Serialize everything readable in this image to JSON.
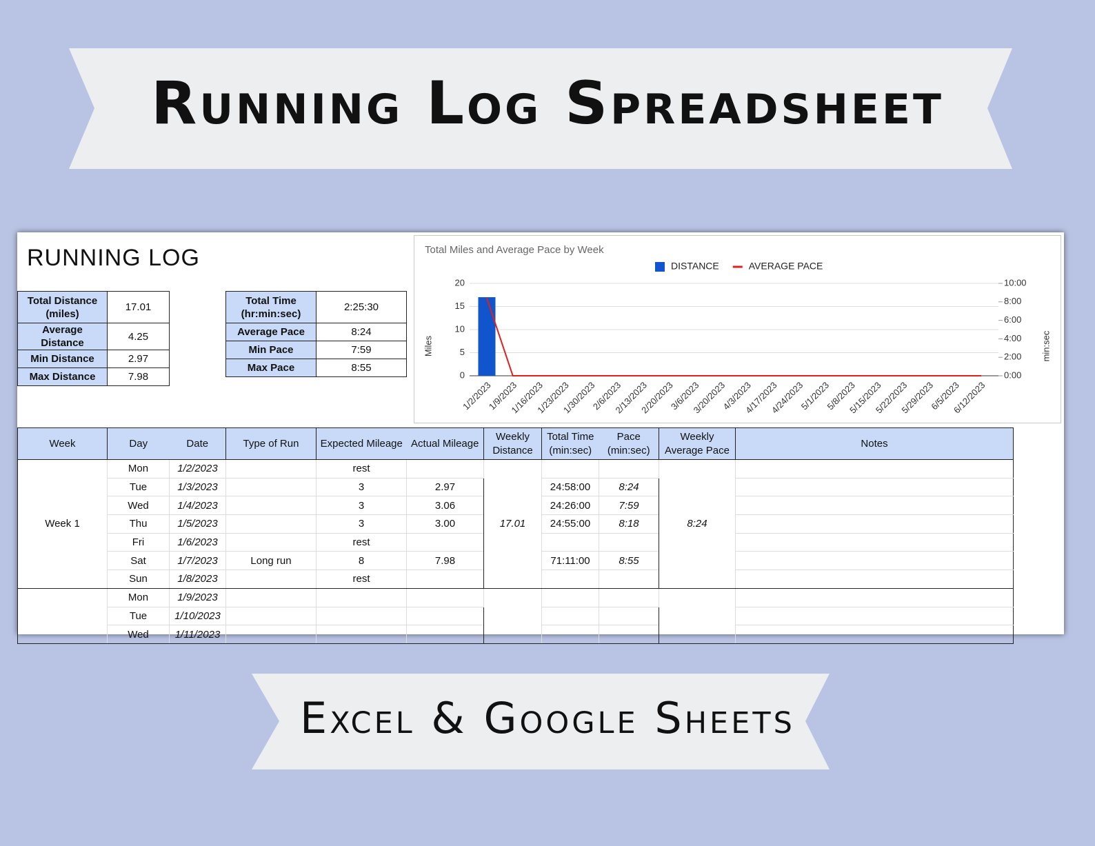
{
  "banner_title": "Running Log Spreadsheet",
  "banner_subtitle": "Excel & Google Sheets",
  "sheet_title": "RUNNING LOG",
  "distance_stats": [
    [
      "Total Distance (miles)",
      "17.01"
    ],
    [
      "Average Distance",
      "4.25"
    ],
    [
      "Min Distance",
      "2.97"
    ],
    [
      "Max Distance",
      "7.98"
    ]
  ],
  "time_stats": [
    [
      "Total Time (hr:min:sec)",
      "2:25:30"
    ],
    [
      "Average Pace",
      "8:24"
    ],
    [
      "Min Pace",
      "7:59"
    ],
    [
      "Max Pace",
      "8:55"
    ]
  ],
  "log": {
    "columns": [
      "Week",
      "Day",
      "Date",
      "Type of Run",
      "Expected Mileage",
      "Actual Mileage",
      "Weekly Distance",
      "Total Time (min:sec)",
      "Pace (min:sec)",
      "Weekly Average Pace",
      "Notes"
    ],
    "weeks": [
      {
        "week": "Week 1",
        "weekly_distance": "17.01",
        "weekly_average_pace": "8:24",
        "days": [
          {
            "day": "Mon",
            "date": "1/2/2023",
            "expected": "rest"
          },
          {
            "day": "Tue",
            "date": "1/3/2023",
            "expected": "3",
            "actual": "2.97",
            "total_time": "24:58:00",
            "pace": "8:24"
          },
          {
            "day": "Wed",
            "date": "1/4/2023",
            "expected": "3",
            "actual": "3.06",
            "total_time": "24:26:00",
            "pace": "7:59"
          },
          {
            "day": "Thu",
            "date": "1/5/2023",
            "expected": "3",
            "actual": "3.00",
            "total_time": "24:55:00",
            "pace": "8:18"
          },
          {
            "day": "Fri",
            "date": "1/6/2023",
            "expected": "rest"
          },
          {
            "day": "Sat",
            "date": "1/7/2023",
            "type": "Long run",
            "expected": "8",
            "actual": "7.98",
            "total_time": "71:11:00",
            "pace": "8:55"
          },
          {
            "day": "Sun",
            "date": "1/8/2023",
            "expected": "rest"
          }
        ]
      },
      {
        "days": [
          {
            "day": "Mon",
            "date": "1/9/2023"
          },
          {
            "day": "Tue",
            "date": "1/10/2023"
          },
          {
            "day": "Wed",
            "date": "1/11/2023"
          }
        ]
      }
    ]
  },
  "chart_data": {
    "type": "bar",
    "title": "Total Miles and Average Pace by Week",
    "ylabel": "Miles",
    "y2label": "min:sec",
    "categories": [
      "1/2/2023",
      "1/9/2023",
      "1/16/2023",
      "1/23/2023",
      "1/30/2023",
      "2/6/2023",
      "2/13/2023",
      "2/20/2023",
      "3/6/2023",
      "3/20/2023",
      "4/3/2023",
      "4/17/2023",
      "4/24/2023",
      "5/1/2023",
      "5/8/2023",
      "5/15/2023",
      "5/22/2023",
      "5/29/2023",
      "6/5/2023",
      "6/12/2023"
    ],
    "series": [
      {
        "name": "DISTANCE",
        "type": "bar",
        "color": "#1155cc",
        "values": [
          17.01,
          0,
          0,
          0,
          0,
          0,
          0,
          0,
          0,
          0,
          0,
          0,
          0,
          0,
          0,
          0,
          0,
          0,
          0,
          0
        ]
      },
      {
        "name": "AVERAGE PACE",
        "type": "line",
        "axis": "y2",
        "color": "#e0201b",
        "values": [
          8.4,
          0,
          0,
          0,
          0,
          0,
          0,
          0,
          0,
          0,
          0,
          0,
          0,
          0,
          0,
          0,
          0,
          0,
          0,
          0
        ]
      }
    ],
    "ylim": [
      0,
      20
    ],
    "yticks": [
      0,
      5,
      10,
      15,
      20
    ],
    "y2lim": [
      0,
      10
    ],
    "y2ticks": [
      {
        "value": 0,
        "label": "0:00"
      },
      {
        "value": 2,
        "label": "2:00"
      },
      {
        "value": 4,
        "label": "4:00"
      },
      {
        "value": 6,
        "label": "6:00"
      },
      {
        "value": 8,
        "label": "8:00"
      },
      {
        "value": 10,
        "label": "10:00"
      }
    ],
    "grid": true,
    "legend": "top"
  }
}
